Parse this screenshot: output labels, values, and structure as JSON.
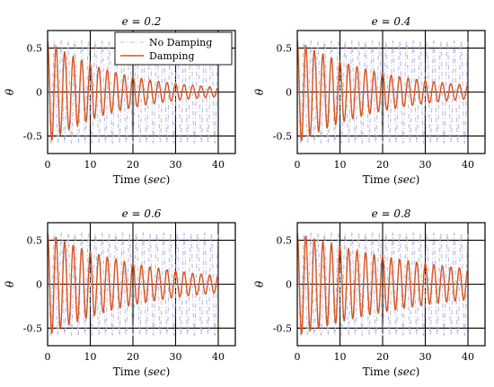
{
  "chart_data": [
    {
      "type": "line",
      "title": "e = 0.2",
      "xlabel": "Time (sec)",
      "ylabel": "θ",
      "xlim": [
        0,
        44
      ],
      "ylim": [
        -0.7,
        0.7
      ],
      "xticks": [
        0,
        10,
        20,
        30,
        40
      ],
      "xtick_labels": [
        "0",
        "10",
        "20",
        "30",
        "40"
      ],
      "yticks": [
        -0.5,
        0,
        0.5
      ],
      "ytick_labels": [
        "-0.5",
        "0",
        "0.5"
      ],
      "grid": true,
      "legend": "top-right",
      "series": [
        {
          "name": "No Damping",
          "color": "#b8bde0",
          "style": "dashdot",
          "amplitude": 0.58,
          "decay_rate": 0,
          "period": 1.6
        },
        {
          "name": "Damping",
          "color": "#d9541e",
          "style": "solid",
          "amplitude": 0.58,
          "decay_rate": 0.06,
          "period": 2.0
        }
      ]
    },
    {
      "type": "line",
      "title": "e = 0.4",
      "xlabel": "Time (sec)",
      "ylabel": "θ",
      "xlim": [
        0,
        44
      ],
      "ylim": [
        -0.7,
        0.7
      ],
      "xticks": [
        0,
        10,
        20,
        30,
        40
      ],
      "xtick_labels": [
        "0",
        "10",
        "20",
        "30",
        "40"
      ],
      "yticks": [
        -0.5,
        0,
        0.5
      ],
      "ytick_labels": [
        "-0.5",
        "0",
        "0.5"
      ],
      "grid": true,
      "series": [
        {
          "name": "No Damping",
          "color": "#b8bde0",
          "style": "dashdot",
          "amplitude": 0.58,
          "decay_rate": 0,
          "period": 1.6
        },
        {
          "name": "Damping",
          "color": "#d9541e",
          "style": "solid",
          "amplitude": 0.58,
          "decay_rate": 0.05,
          "period": 2.0
        }
      ]
    },
    {
      "type": "line",
      "title": "e = 0.6",
      "xlabel": "Time (sec)",
      "ylabel": "θ",
      "xlim": [
        0,
        44
      ],
      "ylim": [
        -0.7,
        0.7
      ],
      "xticks": [
        0,
        10,
        20,
        30,
        40
      ],
      "xtick_labels": [
        "0",
        "10",
        "20",
        "30",
        "40"
      ],
      "yticks": [
        -0.5,
        0,
        0.5
      ],
      "ytick_labels": [
        "-0.5",
        "0",
        "0.5"
      ],
      "grid": true,
      "series": [
        {
          "name": "No Damping",
          "color": "#b8bde0",
          "style": "dashdot",
          "amplitude": 0.58,
          "decay_rate": 0,
          "period": 1.6
        },
        {
          "name": "Damping",
          "color": "#d9541e",
          "style": "solid",
          "amplitude": 0.58,
          "decay_rate": 0.045,
          "period": 2.0
        }
      ]
    },
    {
      "type": "line",
      "title": "e = 0.8",
      "xlabel": "Time (sec)",
      "ylabel": "θ",
      "xlim": [
        0,
        44
      ],
      "ylim": [
        -0.7,
        0.7
      ],
      "xticks": [
        0,
        10,
        20,
        30,
        40
      ],
      "xtick_labels": [
        "0",
        "10",
        "20",
        "30",
        "40"
      ],
      "yticks": [
        -0.5,
        0,
        0.5
      ],
      "ytick_labels": [
        "-0.5",
        "0",
        "0.5"
      ],
      "grid": true,
      "series": [
        {
          "name": "No Damping",
          "color": "#b8bde0",
          "style": "dashdot",
          "amplitude": 0.58,
          "decay_rate": 0,
          "period": 1.6
        },
        {
          "name": "Damping",
          "color": "#d9541e",
          "style": "solid",
          "amplitude": 0.58,
          "decay_rate": 0.03,
          "period": 2.0
        }
      ]
    }
  ]
}
